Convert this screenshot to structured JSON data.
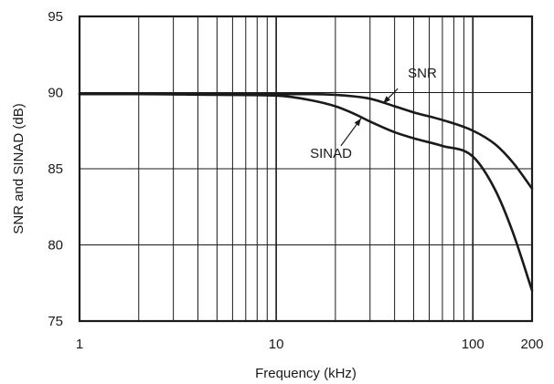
{
  "chart_data": {
    "type": "line",
    "title": "",
    "xlabel": "Frequency (kHz)",
    "ylabel": "SNR and SINAD (dB)",
    "x_scale": "log",
    "xlim": [
      1,
      200
    ],
    "ylim": [
      75,
      95
    ],
    "x_ticks": [
      1,
      10,
      100,
      200
    ],
    "x_tick_labels": [
      "1",
      "10",
      "100",
      "200"
    ],
    "y_ticks": [
      75,
      80,
      85,
      90,
      95
    ],
    "y_tick_labels": [
      "75",
      "80",
      "85",
      "90",
      "95"
    ],
    "grid": true,
    "legend": "none",
    "series": [
      {
        "name": "SNR",
        "color": "#1a1a1a",
        "x": [
          1,
          2,
          5,
          10,
          15,
          20,
          30,
          40,
          50,
          70,
          100,
          130,
          160,
          200
        ],
        "y": [
          89.9,
          89.9,
          89.9,
          89.9,
          89.9,
          89.85,
          89.6,
          89.1,
          88.7,
          88.2,
          87.5,
          86.6,
          85.4,
          83.7
        ]
      },
      {
        "name": "SINAD",
        "color": "#1a1a1a",
        "x": [
          1,
          2,
          5,
          10,
          15,
          20,
          25,
          30,
          40,
          50,
          70,
          100,
          130,
          160,
          200
        ],
        "y": [
          89.9,
          89.9,
          89.85,
          89.8,
          89.5,
          89.1,
          88.6,
          88.1,
          87.4,
          87.0,
          86.5,
          85.8,
          83.6,
          80.8,
          77.0
        ]
      }
    ],
    "annotations": [
      {
        "text": "SNR",
        "series": "SNR",
        "target_x": 35,
        "target_y": 89.3
      },
      {
        "text": "SINAD",
        "series": "SINAD",
        "target_x": 27,
        "target_y": 88.3
      }
    ]
  }
}
